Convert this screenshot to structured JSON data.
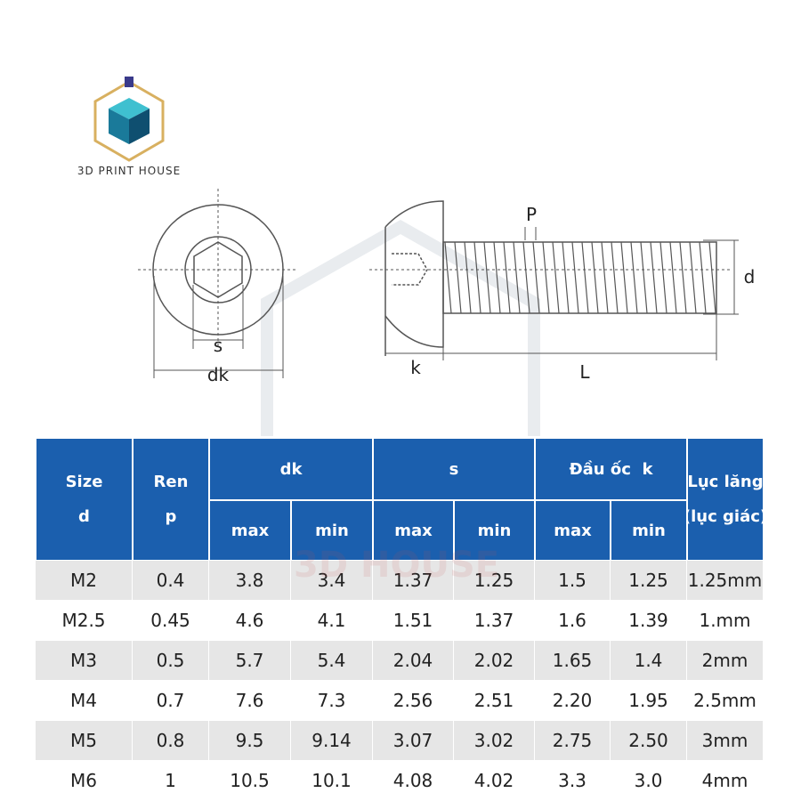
{
  "logo": {
    "text": "3D PRINT HOUSE"
  },
  "diagram": {
    "labels": {
      "s": "s",
      "dk": "dk",
      "P": "P",
      "d": "d",
      "k": "k",
      "L": "L"
    }
  },
  "watermark": "3D HOUSE",
  "table": {
    "header": {
      "size": [
        "Size",
        "d"
      ],
      "ren": [
        "Ren",
        "p"
      ],
      "dk": "dk",
      "s": "s",
      "k": "Đầu ốc  k",
      "hex": [
        "Lục lăng",
        "(lục giác)"
      ],
      "sub": [
        "max",
        "min",
        "max",
        "min",
        "max",
        "min"
      ]
    },
    "rows": [
      [
        "M2",
        "0.4",
        "3.8",
        "3.4",
        "1.37",
        "1.25",
        "1.5",
        "1.25",
        "1.25mm"
      ],
      [
        "M2.5",
        "0.45",
        "4.6",
        "4.1",
        "1.51",
        "1.37",
        "1.6",
        "1.39",
        "1.mm"
      ],
      [
        "M3",
        "0.5",
        "5.7",
        "5.4",
        "2.04",
        "2.02",
        "1.65",
        "1.4",
        "2mm"
      ],
      [
        "M4",
        "0.7",
        "7.6",
        "7.3",
        "2.56",
        "2.51",
        "2.20",
        "1.95",
        "2.5mm"
      ],
      [
        "M5",
        "0.8",
        "9.5",
        "9.14",
        "3.07",
        "3.02",
        "2.75",
        "2.50",
        "3mm"
      ],
      [
        "M6",
        "1",
        "10.5",
        "10.1",
        "4.08",
        "4.02",
        "3.3",
        "3.0",
        "4mm"
      ]
    ]
  }
}
